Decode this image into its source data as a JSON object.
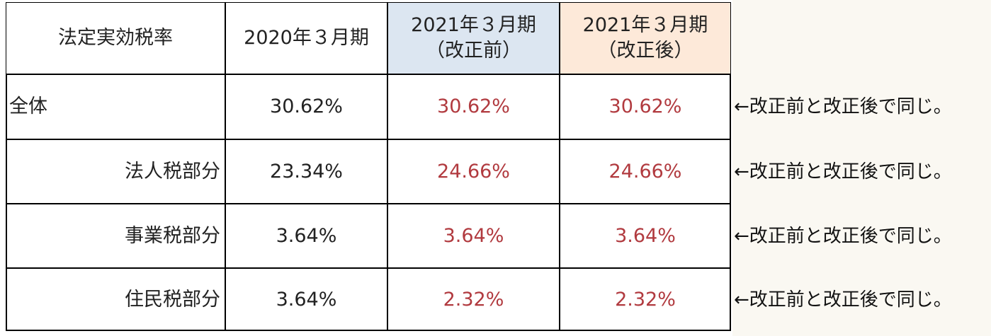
{
  "table": {
    "header": [
      [
        "法定実効税率"
      ],
      [
        "2020年３月期"
      ],
      [
        "2021年３月期",
        "（改正前）"
      ],
      [
        "2021年３月期",
        "（改正後）"
      ]
    ],
    "rows": [
      [
        "全体",
        "30.62%",
        "30.62%",
        "30.62%"
      ],
      [
        "法人税部分",
        "23.34%",
        "24.66%",
        "24.66%"
      ],
      [
        "事業税部分",
        "3.64%",
        "3.64%",
        "3.64%"
      ],
      [
        "住民税部分",
        "3.64%",
        "2.32%",
        "2.32%"
      ]
    ],
    "notes": [
      "←改正前と改正後で同じ。",
      "←改正前と改正後で同じ。",
      "←改正前と改正後で同じ。",
      "←改正前と改正後で同じ。"
    ]
  }
}
